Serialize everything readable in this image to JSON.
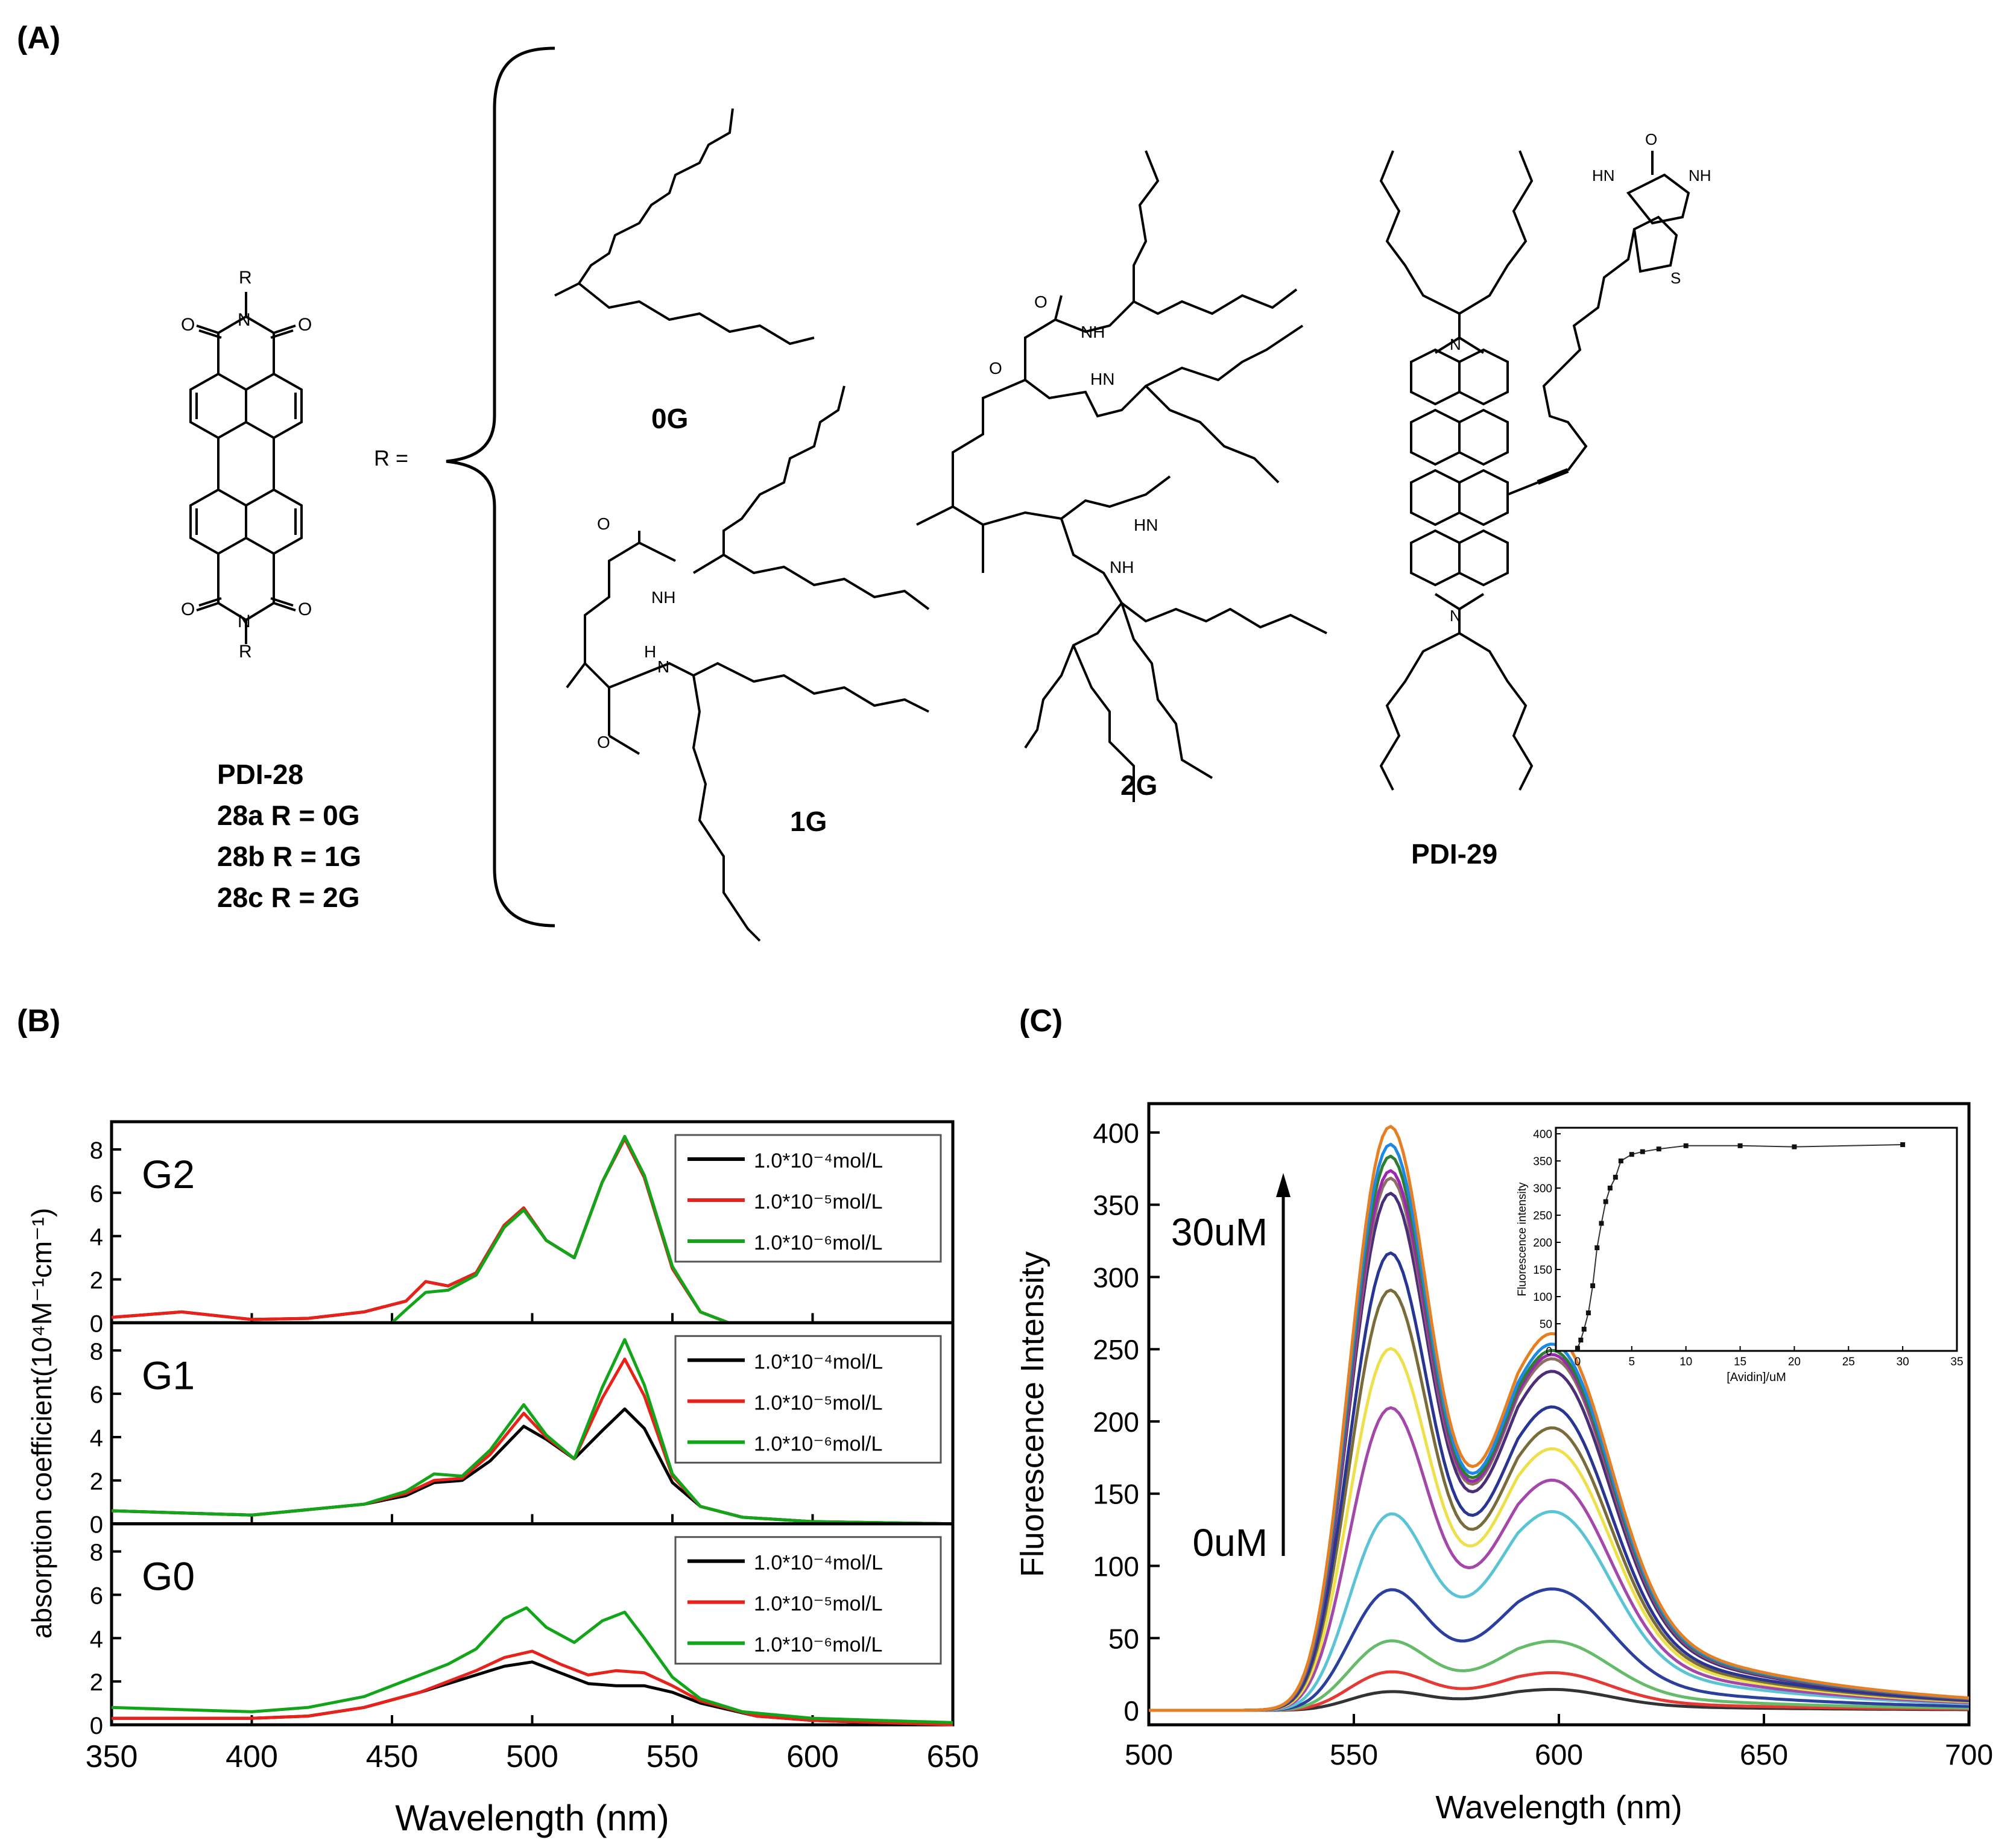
{
  "panel_labels": {
    "a": "(A)",
    "b": "(B)",
    "c": "(C)"
  },
  "panel_a": {
    "r_label": "R",
    "r_equals": "R =",
    "atom_o": "O",
    "atom_n": "N",
    "atom_nh": "NH",
    "atom_hn": "HN",
    "atom_h": "H",
    "atom_s": "S",
    "labels": {
      "g0": "0G",
      "g1": "1G",
      "g2": "2G",
      "pdi29": "PDI-29",
      "pdi28": "PDI-28",
      "a28": "28a R = 0G",
      "b28": "28b R = 1G",
      "c28": "28c R = 2G"
    }
  },
  "colors": {
    "black": "#000000",
    "red": "#e8221b",
    "green": "#12a51a"
  },
  "chart_data": [
    {
      "panel": "(B)",
      "type": "line",
      "xlabel": "Wavelength (nm)",
      "ylabel": "absorption coefficient(10⁴M⁻¹cm⁻¹)",
      "xlim": [
        350,
        650
      ],
      "x_ticks": [
        "350",
        "400",
        "450",
        "500",
        "550",
        "600",
        "650"
      ],
      "legend_placement": "top-right",
      "subplots": [
        {
          "name": "G2",
          "ylim": [
            0,
            9
          ],
          "y_ticks": [
            "0",
            "2",
            "4",
            "6",
            "8"
          ],
          "legend": [
            "1.0*10⁻⁴mol/L",
            "1.0*10⁻⁵mol/L",
            "1.0*10⁻⁶mol/L"
          ],
          "series": [
            {
              "name": "1.0*10⁻⁴mol/L",
              "color": "#000000",
              "x": [
                350,
                375,
                400,
                420,
                440,
                455,
                462,
                470,
                480,
                490,
                497,
                505,
                515,
                525,
                533,
                540,
                550,
                560,
                570
              ],
              "y": [
                0.25,
                0.5,
                0.15,
                0.2,
                0.5,
                1.0,
                1.9,
                1.7,
                2.3,
                4.5,
                5.3,
                3.8,
                3.0,
                6.5,
                8.5,
                6.7,
                2.5,
                0.5,
                0
              ]
            },
            {
              "name": "1.0*10⁻⁵mol/L",
              "color": "#e8221b",
              "x": [
                350,
                375,
                400,
                420,
                440,
                455,
                462,
                470,
                480,
                490,
                497,
                505,
                515,
                525,
                533,
                540,
                550,
                560,
                570
              ],
              "y": [
                0.25,
                0.5,
                0.15,
                0.2,
                0.5,
                1.0,
                1.9,
                1.7,
                2.3,
                4.5,
                5.3,
                3.8,
                3.0,
                6.5,
                8.5,
                6.7,
                2.5,
                0.5,
                0
              ]
            },
            {
              "name": "1.0*10⁻⁶mol/L",
              "color": "#12a51a",
              "x": [
                450,
                455,
                462,
                470,
                480,
                490,
                497,
                505,
                515,
                525,
                533,
                540,
                550,
                560,
                570
              ],
              "y": [
                0,
                0.6,
                1.4,
                1.5,
                2.2,
                4.4,
                5.2,
                3.8,
                3.0,
                6.5,
                8.6,
                6.8,
                2.6,
                0.5,
                0
              ]
            }
          ]
        },
        {
          "name": "G1",
          "ylim": [
            0,
            9
          ],
          "y_ticks": [
            "0",
            "2",
            "4",
            "6",
            "8"
          ],
          "legend": [
            "1.0*10⁻⁴mol/L",
            "1.0*10⁻⁵mol/L",
            "1.0*10⁻⁶mol/L"
          ],
          "series": [
            {
              "name": "1.0*10⁻⁴mol/L",
              "color": "#000000",
              "x": [
                350,
                400,
                440,
                455,
                465,
                475,
                485,
                497,
                505,
                515,
                525,
                533,
                540,
                550,
                560,
                575,
                600,
                650
              ],
              "y": [
                0.6,
                0.4,
                0.9,
                1.3,
                1.9,
                2.0,
                2.9,
                4.5,
                3.9,
                3.0,
                4.3,
                5.3,
                4.4,
                1.9,
                0.8,
                0.3,
                0.1,
                0
              ]
            },
            {
              "name": "1.0*10⁻⁵mol/L",
              "color": "#e8221b",
              "x": [
                350,
                400,
                440,
                455,
                465,
                475,
                485,
                497,
                505,
                515,
                525,
                533,
                540,
                550,
                560,
                575,
                600,
                650
              ],
              "y": [
                0.6,
                0.4,
                0.9,
                1.4,
                2.0,
                2.1,
                3.2,
                5.1,
                4.0,
                3.0,
                5.8,
                7.6,
                5.9,
                2.2,
                0.8,
                0.3,
                0.1,
                0
              ]
            },
            {
              "name": "1.0*10⁻⁶mol/L",
              "color": "#12a51a",
              "x": [
                350,
                400,
                440,
                455,
                465,
                475,
                485,
                497,
                505,
                515,
                525,
                533,
                540,
                550,
                560,
                575,
                600,
                650
              ],
              "y": [
                0.6,
                0.4,
                0.9,
                1.5,
                2.3,
                2.2,
                3.4,
                5.5,
                4.1,
                3.0,
                6.3,
                8.5,
                6.4,
                2.3,
                0.8,
                0.3,
                0.1,
                0
              ]
            }
          ]
        },
        {
          "name": "G0",
          "ylim": [
            0,
            9
          ],
          "y_ticks": [
            "0",
            "2",
            "4",
            "6",
            "8"
          ],
          "legend": [
            "1.0*10⁻⁴mol/L",
            "1.0*10⁻⁵mol/L",
            "1.0*10⁻⁶mol/L"
          ],
          "series": [
            {
              "name": "1.0*10⁻⁴mol/L",
              "color": "#000000",
              "x": [
                350,
                400,
                420,
                440,
                460,
                480,
                490,
                500,
                510,
                520,
                530,
                540,
                550,
                560,
                580,
                600,
                650
              ],
              "y": [
                0.3,
                0.3,
                0.4,
                0.8,
                1.5,
                2.3,
                2.7,
                2.9,
                2.4,
                1.9,
                1.8,
                1.8,
                1.5,
                1.0,
                0.4,
                0.2,
                0
              ]
            },
            {
              "name": "1.0*10⁻⁵mol/L",
              "color": "#e8221b",
              "x": [
                350,
                400,
                420,
                440,
                460,
                480,
                490,
                500,
                510,
                520,
                530,
                540,
                550,
                560,
                580,
                600,
                650
              ],
              "y": [
                0.3,
                0.3,
                0.4,
                0.8,
                1.5,
                2.5,
                3.1,
                3.4,
                2.8,
                2.3,
                2.5,
                2.4,
                1.8,
                1.1,
                0.4,
                0.2,
                0
              ]
            },
            {
              "name": "1.0*10⁻⁶mol/L",
              "color": "#12a51a",
              "x": [
                350,
                400,
                420,
                440,
                460,
                470,
                480,
                490,
                498,
                505,
                515,
                525,
                533,
                540,
                550,
                560,
                575,
                600,
                650
              ],
              "y": [
                0.8,
                0.6,
                0.8,
                1.3,
                2.3,
                2.8,
                3.5,
                4.9,
                5.4,
                4.5,
                3.8,
                4.8,
                5.2,
                4.0,
                2.2,
                1.2,
                0.6,
                0.3,
                0.1
              ]
            }
          ]
        }
      ]
    },
    {
      "panel": "(C)",
      "type": "line",
      "xlabel": "Wavelength (nm)",
      "ylabel": "Fluorescence Intensity",
      "xlim": [
        500,
        700
      ],
      "ylim": [
        -10,
        420
      ],
      "x_ticks": [
        "500",
        "550",
        "600",
        "650",
        "700"
      ],
      "y_ticks": [
        "0",
        "50",
        "100",
        "150",
        "200",
        "250",
        "300",
        "350",
        "400"
      ],
      "annotations": [
        "30uM",
        "0uM"
      ],
      "series": [
        {
          "color": "#333333",
          "peak": 12,
          "shoulder": 10
        },
        {
          "color": "#e53935",
          "peak": 25,
          "shoulder": 18
        },
        {
          "color": "#66bb6a",
          "peak": 45,
          "shoulder": 33
        },
        {
          "color": "#2b3f9e",
          "peak": 78,
          "shoulder": 58
        },
        {
          "color": "#5bc4d4",
          "peak": 127,
          "shoulder": 95
        },
        {
          "color": "#a347a8",
          "peak": 200,
          "shoulder": 110
        },
        {
          "color": "#eee04a",
          "peak": 240,
          "shoulder": 125
        },
        {
          "color": "#7a6b3a",
          "peak": 280,
          "shoulder": 135
        },
        {
          "color": "#283593",
          "peak": 305,
          "shoulder": 145
        },
        {
          "color": "#4a2f78",
          "peak": 345,
          "shoulder": 162
        },
        {
          "color": "#8d6e63",
          "peak": 355,
          "shoulder": 168
        },
        {
          "color": "#9c27b0",
          "peak": 360,
          "shoulder": 170
        },
        {
          "color": "#2e7d32",
          "peak": 370,
          "shoulder": 172
        },
        {
          "color": "#1e88e5",
          "peak": 378,
          "shoulder": 175
        },
        {
          "color": "#e67e22",
          "peak": 390,
          "shoulder": 180
        }
      ],
      "inset": {
        "type": "line",
        "xlabel": "[Avidin]/uM",
        "ylabel": "Fluorescence intensity",
        "xlim": [
          -2,
          35
        ],
        "ylim": [
          0,
          400
        ],
        "x_ticks": [
          "0",
          "5",
          "10",
          "15",
          "20",
          "25",
          "30",
          "35"
        ],
        "y_ticks": [
          "0",
          "50",
          "100",
          "150",
          "200",
          "250",
          "300",
          "350",
          "400"
        ],
        "x": [
          0,
          0.3,
          0.6,
          1.0,
          1.4,
          1.8,
          2.2,
          2.6,
          3.0,
          3.5,
          4.0,
          5.0,
          6.0,
          7.5,
          10,
          15,
          20,
          30
        ],
        "y": [
          5,
          20,
          40,
          70,
          120,
          190,
          235,
          275,
          300,
          320,
          350,
          362,
          367,
          372,
          378,
          378,
          376,
          380
        ]
      }
    }
  ]
}
